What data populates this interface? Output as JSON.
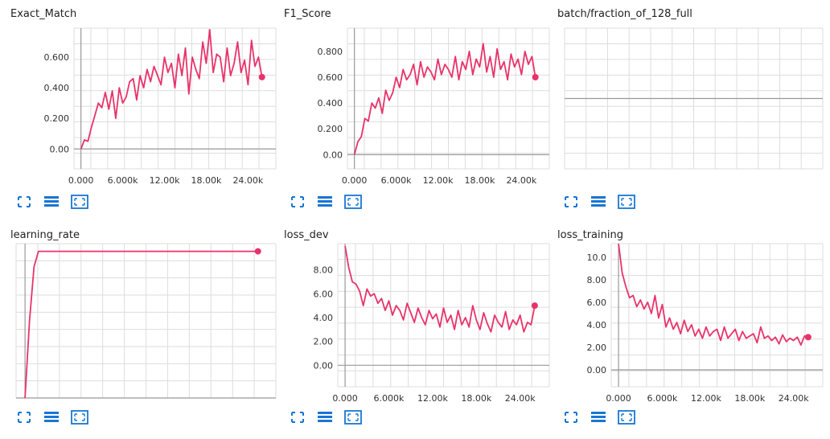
{
  "accent": "#e8336a",
  "icons": [
    "fit-domain-icon",
    "toggle-log-scale-icon",
    "expand-chart-icon"
  ],
  "chart_data": [
    {
      "type": "line",
      "title": "Exact_Match",
      "xticks": [
        0,
        6000,
        12000,
        18000,
        24000
      ],
      "xtick_labels": [
        "0.000",
        "6.000k",
        "12.00k",
        "18.00k",
        "24.00k"
      ],
      "xlim": [
        -1000,
        28000
      ],
      "yticks": [
        0,
        0.2,
        0.4,
        0.6
      ],
      "ytick_labels": [
        "0.00",
        "0.200",
        "0.400",
        "0.600"
      ],
      "ylim": [
        -0.13,
        0.79
      ],
      "series": [
        {
          "x": [
            0,
            500,
            1000,
            1500,
            2000,
            2500,
            3000,
            3500,
            4000,
            4500,
            5000,
            5500,
            6000,
            6500,
            7000,
            7500,
            8000,
            8500,
            9000,
            9500,
            10000,
            10500,
            11000,
            11500,
            12000,
            12500,
            13000,
            13500,
            14000,
            14500,
            15000,
            15500,
            16000,
            16500,
            17000,
            17500,
            18000,
            18500,
            19000,
            19500,
            20000,
            20500,
            21000,
            21500,
            22000,
            22500,
            23000,
            23500,
            24000,
            24500,
            25000,
            25500,
            26000
          ],
          "y": [
            0.0,
            0.06,
            0.05,
            0.14,
            0.22,
            0.3,
            0.27,
            0.37,
            0.26,
            0.38,
            0.2,
            0.4,
            0.3,
            0.34,
            0.44,
            0.46,
            0.32,
            0.48,
            0.4,
            0.52,
            0.44,
            0.54,
            0.48,
            0.42,
            0.6,
            0.5,
            0.56,
            0.4,
            0.62,
            0.48,
            0.66,
            0.36,
            0.6,
            0.52,
            0.46,
            0.7,
            0.56,
            0.78,
            0.5,
            0.62,
            0.6,
            0.44,
            0.66,
            0.48,
            0.56,
            0.7,
            0.5,
            0.58,
            0.42,
            0.71,
            0.54,
            0.6,
            0.47
          ]
        }
      ]
    },
    {
      "type": "line",
      "title": "F1_Score",
      "xticks": [
        0,
        6000,
        12000,
        18000,
        24000
      ],
      "xtick_labels": [
        "0.000",
        "6.000k",
        "12.00k",
        "18.00k",
        "24.00k"
      ],
      "xlim": [
        -1000,
        28000
      ],
      "yticks": [
        0,
        0.2,
        0.4,
        0.6,
        0.8
      ],
      "ytick_labels": [
        "0.00",
        "0.200",
        "0.400",
        "0.600",
        "0.800"
      ],
      "ylim": [
        -0.11,
        0.98
      ],
      "series": [
        {
          "x": [
            0,
            500,
            1000,
            1500,
            2000,
            2500,
            3000,
            3500,
            4000,
            4500,
            5000,
            5500,
            6000,
            6500,
            7000,
            7500,
            8000,
            8500,
            9000,
            9500,
            10000,
            10500,
            11000,
            11500,
            12000,
            12500,
            13000,
            13500,
            14000,
            14500,
            15000,
            15500,
            16000,
            16500,
            17000,
            17500,
            18000,
            18500,
            19000,
            19500,
            20000,
            20500,
            21000,
            21500,
            22000,
            22500,
            23000,
            23500,
            24000,
            24500,
            25000,
            25500,
            26000
          ],
          "y": [
            0.0,
            0.1,
            0.14,
            0.28,
            0.26,
            0.4,
            0.36,
            0.44,
            0.32,
            0.5,
            0.42,
            0.48,
            0.6,
            0.52,
            0.66,
            0.58,
            0.62,
            0.7,
            0.54,
            0.72,
            0.6,
            0.68,
            0.64,
            0.58,
            0.74,
            0.62,
            0.7,
            0.66,
            0.6,
            0.76,
            0.58,
            0.72,
            0.66,
            0.8,
            0.62,
            0.74,
            0.68,
            0.86,
            0.64,
            0.76,
            0.6,
            0.82,
            0.66,
            0.72,
            0.58,
            0.78,
            0.68,
            0.74,
            0.62,
            0.8,
            0.7,
            0.76,
            0.6
          ]
        }
      ]
    },
    {
      "type": "line",
      "title": "batch/fraction_of_128_full",
      "xticks": [],
      "xtick_labels": [],
      "xlim": [
        0,
        1
      ],
      "yticks": [],
      "ytick_labels": [],
      "ylim": [
        0,
        1
      ],
      "series": []
    },
    {
      "type": "line",
      "title": "learning_rate",
      "xticks": [],
      "xtick_labels": [],
      "xlim": [
        -1000,
        28000
      ],
      "yticks": [],
      "ytick_labels": [],
      "ylim": [
        0,
        1
      ],
      "series": [
        {
          "x": [
            0,
            500,
            1000,
            1500,
            26000
          ],
          "y": [
            0.0,
            0.5,
            0.85,
            0.95,
            0.95
          ]
        }
      ]
    },
    {
      "type": "line",
      "title": "loss_dev",
      "xticks": [
        0,
        6000,
        12000,
        18000,
        24000
      ],
      "xtick_labels": [
        "0.000",
        "6.000k",
        "12.00k",
        "18.00k",
        "24.00k"
      ],
      "xlim": [
        -1000,
        28000
      ],
      "yticks": [
        0,
        2,
        4,
        6,
        8
      ],
      "ytick_labels": [
        "0.00",
        "2.00",
        "4.00",
        "6.00",
        "8.00"
      ],
      "ylim": [
        -1.8,
        10.2
      ],
      "series": [
        {
          "x": [
            0,
            500,
            1000,
            1500,
            2000,
            2500,
            3000,
            3500,
            4000,
            4500,
            5000,
            5500,
            6000,
            6500,
            7000,
            7500,
            8000,
            8500,
            9000,
            9500,
            10000,
            10500,
            11000,
            11500,
            12000,
            12500,
            13000,
            13500,
            14000,
            14500,
            15000,
            15500,
            16000,
            16500,
            17000,
            17500,
            18000,
            18500,
            19000,
            19500,
            20000,
            20500,
            21000,
            21500,
            22000,
            22500,
            23000,
            23500,
            24000,
            24500,
            25000,
            25500,
            26000
          ],
          "y": [
            10.0,
            8.2,
            7.0,
            6.8,
            6.2,
            5.0,
            6.4,
            5.8,
            6.0,
            5.2,
            5.6,
            4.6,
            5.4,
            4.2,
            5.0,
            4.6,
            3.8,
            5.2,
            4.4,
            3.6,
            4.8,
            4.0,
            3.4,
            4.6,
            3.9,
            4.3,
            3.2,
            4.8,
            3.6,
            4.2,
            3.0,
            4.6,
            3.4,
            4.0,
            3.2,
            5.0,
            3.8,
            3.0,
            4.4,
            3.5,
            2.8,
            4.2,
            3.6,
            3.2,
            4.5,
            3.0,
            3.8,
            3.4,
            4.2,
            2.8,
            3.6,
            3.4,
            5.0
          ]
        }
      ]
    },
    {
      "type": "line",
      "title": "loss_training",
      "xticks": [
        0,
        6000,
        12000,
        18000,
        24000
      ],
      "xtick_labels": [
        "0.000",
        "6.000k",
        "12.00k",
        "18.00k",
        "24.00k"
      ],
      "xlim": [
        -1000,
        28000
      ],
      "yticks": [
        0,
        2,
        4,
        6,
        8,
        10
      ],
      "ytick_labels": [
        "0.00",
        "2.00",
        "4.00",
        "6.00",
        "8.00",
        "10.0"
      ],
      "ylim": [
        -1.5,
        11.2
      ],
      "series": [
        {
          "x": [
            0,
            500,
            1000,
            1500,
            2000,
            2500,
            3000,
            3500,
            4000,
            4500,
            5000,
            5500,
            6000,
            6500,
            7000,
            7500,
            8000,
            8500,
            9000,
            9500,
            10000,
            10500,
            11000,
            11500,
            12000,
            12500,
            13000,
            13500,
            14000,
            14500,
            15000,
            15500,
            16000,
            16500,
            17000,
            17500,
            18000,
            18500,
            19000,
            19500,
            20000,
            20500,
            21000,
            21500,
            22000,
            22500,
            23000,
            23500,
            24000,
            24500,
            25000,
            25500,
            26000
          ],
          "y": [
            11.2,
            8.6,
            7.4,
            6.4,
            6.6,
            5.6,
            6.2,
            5.4,
            6.0,
            5.0,
            6.6,
            4.6,
            5.8,
            3.8,
            4.6,
            3.6,
            4.2,
            3.2,
            4.4,
            3.4,
            4.0,
            3.0,
            3.6,
            2.8,
            3.8,
            3.0,
            3.4,
            3.6,
            2.6,
            3.8,
            2.8,
            3.2,
            3.6,
            2.6,
            3.4,
            2.8,
            3.0,
            3.2,
            2.4,
            3.8,
            2.8,
            3.0,
            2.6,
            2.9,
            2.3,
            3.1,
            2.5,
            2.8,
            2.6,
            2.9,
            2.2,
            3.0,
            2.9
          ]
        }
      ]
    }
  ]
}
